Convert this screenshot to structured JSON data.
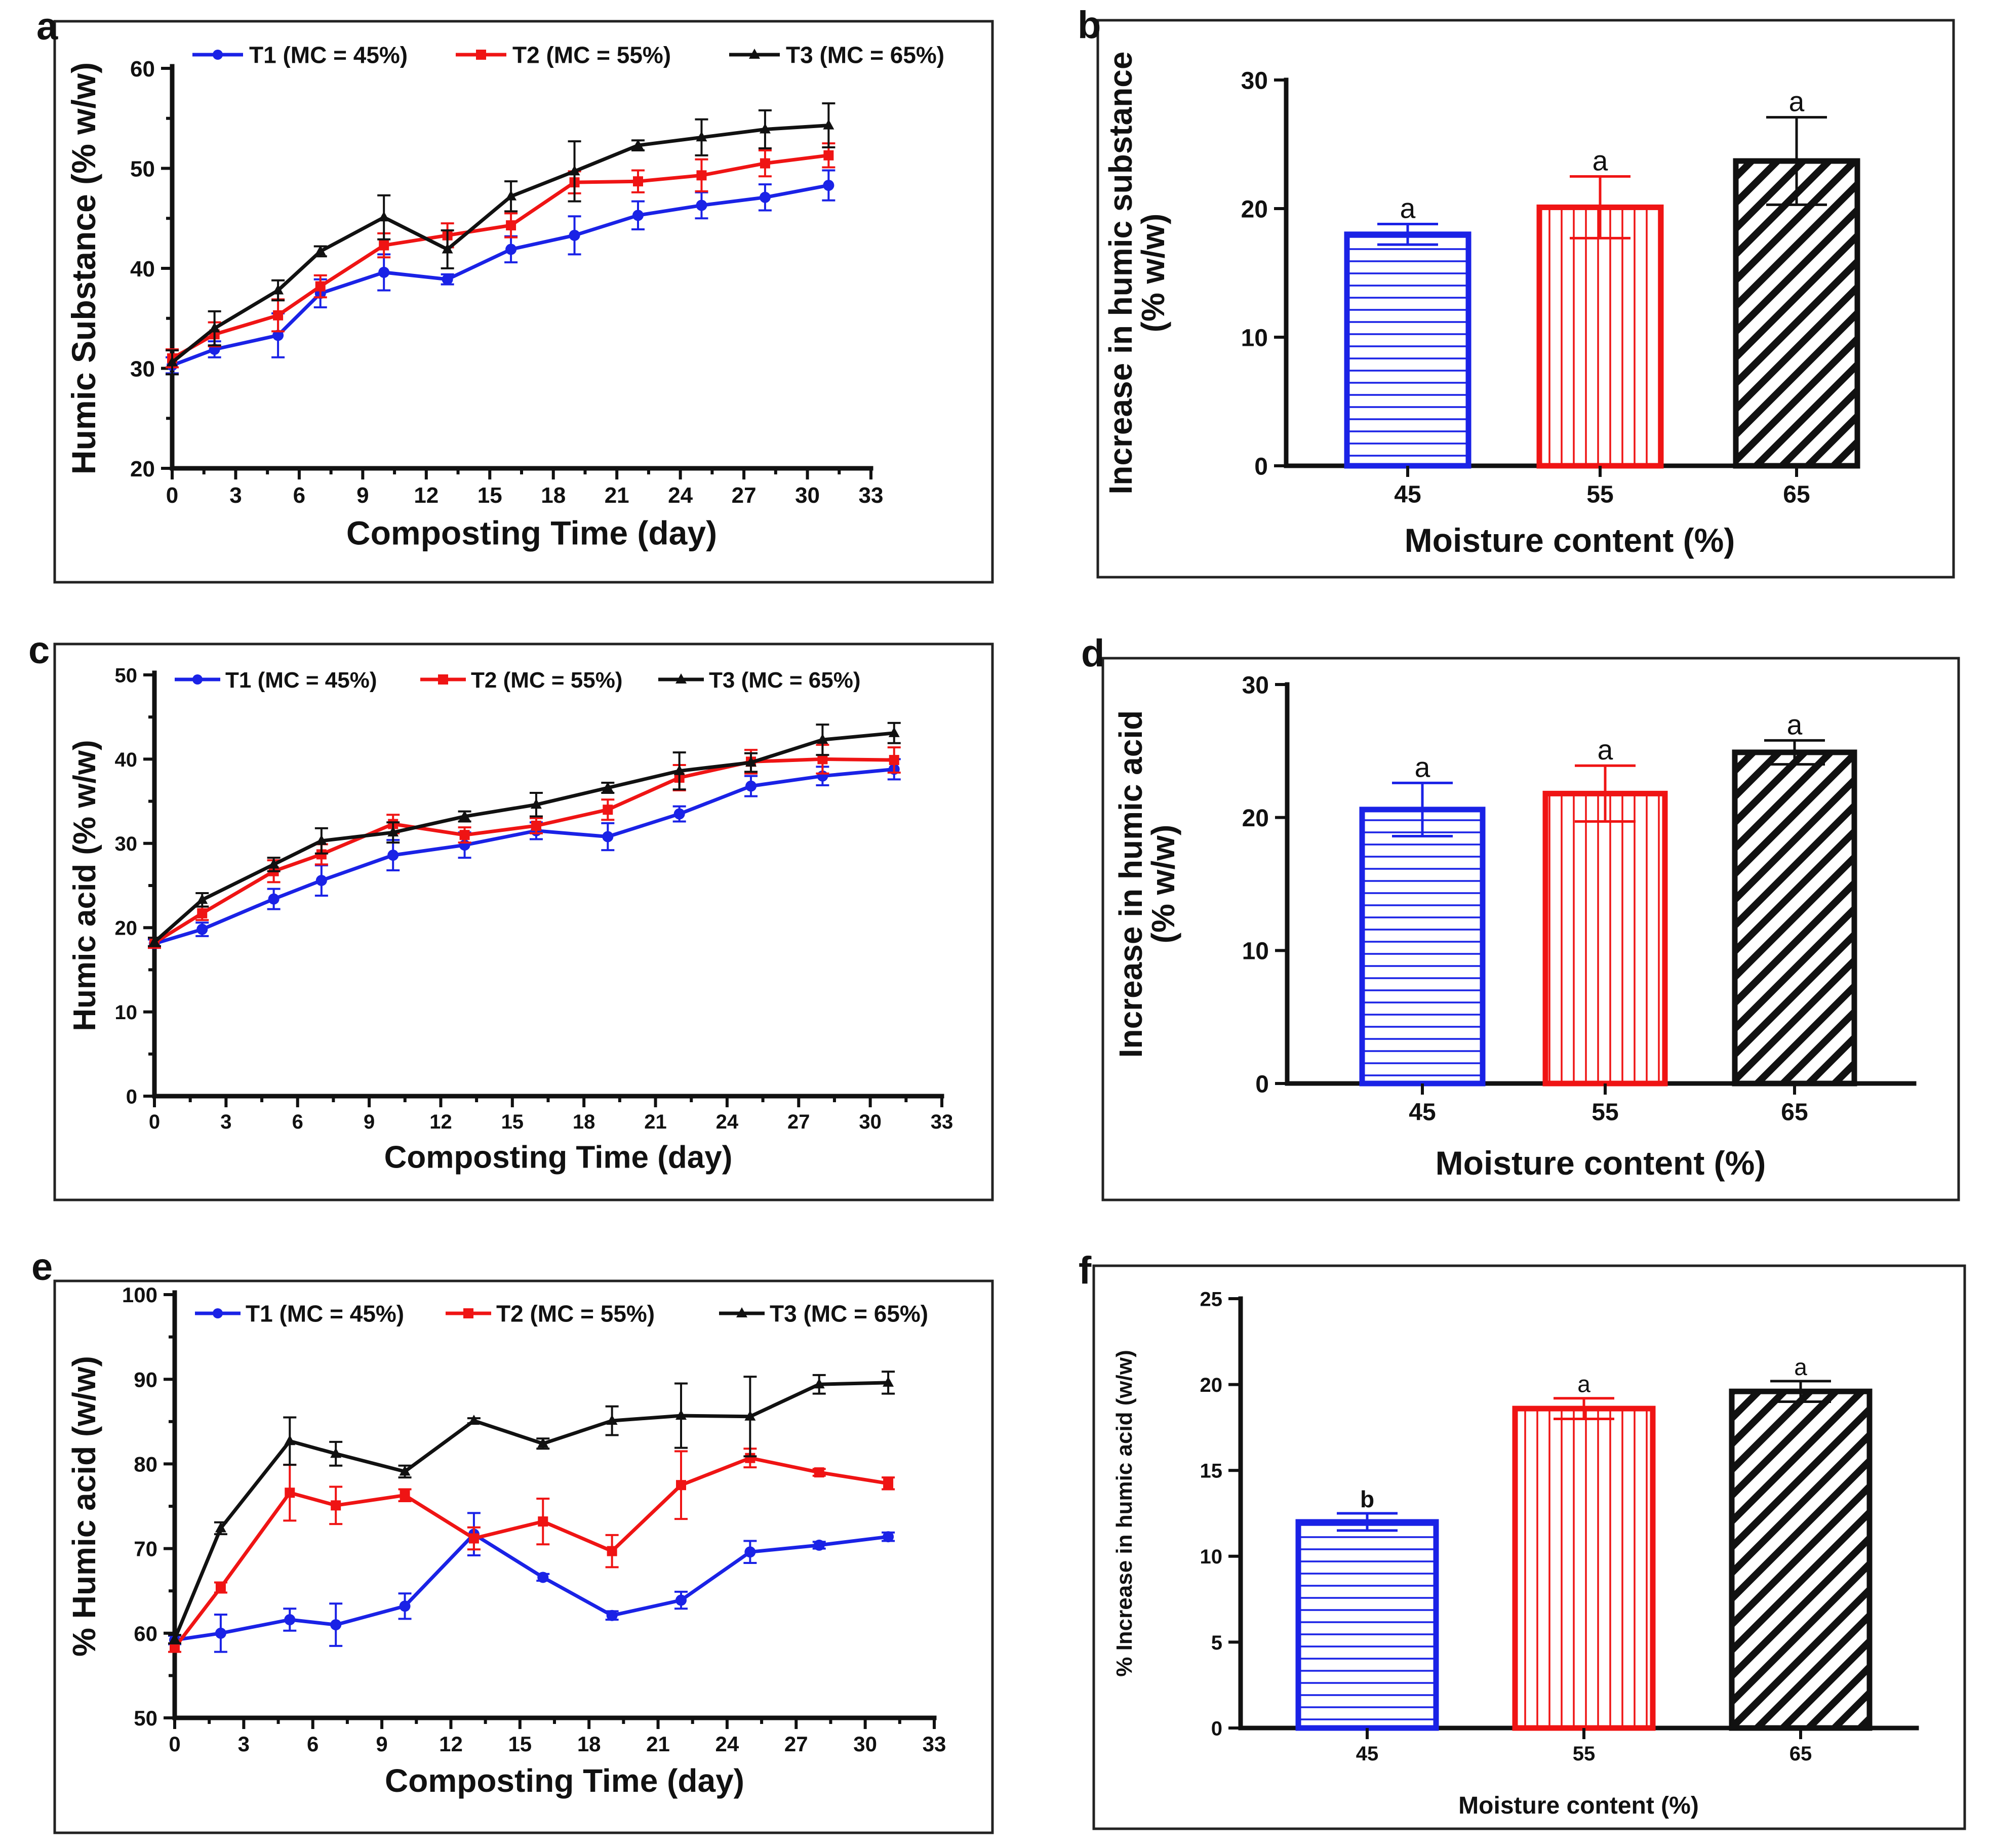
{
  "colors": {
    "T1": "#1a22e6",
    "T2": "#ef1414",
    "T3": "#111111"
  },
  "chart_data": [
    {
      "panel": "a",
      "type": "line",
      "xlabel": "Composting Time (day)",
      "ylabel": "Humic Substance (% w/w)",
      "xlim": [
        0,
        33
      ],
      "ylim": [
        20,
        60
      ],
      "xticks": [
        "0",
        "3",
        "6",
        "9",
        "12",
        "15",
        "18",
        "21",
        "24",
        "27",
        "30",
        "33"
      ],
      "yticks": [
        "20",
        "30",
        "40",
        "50",
        "60"
      ],
      "legend": "top",
      "x": [
        0,
        2,
        5,
        7,
        10,
        13,
        16,
        19,
        22,
        25,
        28,
        31
      ],
      "series": [
        {
          "name": "T1 (MC = 45%)",
          "color_key": "T1",
          "marker": "circle",
          "values": [
            30.3,
            31.9,
            33.3,
            37.5,
            39.6,
            38.9,
            41.9,
            43.3,
            45.3,
            46.3,
            47.1,
            48.3
          ],
          "errors": [
            0.8,
            0.8,
            2.2,
            1.4,
            1.8,
            0.5,
            1.3,
            1.9,
            1.4,
            1.3,
            1.3,
            1.5
          ]
        },
        {
          "name": "T2 (MC = 55%)",
          "color_key": "T2",
          "marker": "square",
          "values": [
            31.0,
            33.4,
            35.3,
            38.2,
            42.3,
            43.3,
            44.3,
            48.6,
            48.7,
            49.3,
            50.5,
            51.3
          ],
          "errors": [
            0.9,
            1.2,
            1.6,
            1.1,
            1.2,
            1.2,
            1.2,
            1.1,
            1.1,
            1.6,
            1.3,
            1.2
          ]
        },
        {
          "name": "T3 (MC = 65%)",
          "color_key": "T3",
          "marker": "triangle",
          "values": [
            30.6,
            34.0,
            37.8,
            41.7,
            45.1,
            41.9,
            47.2,
            49.7,
            52.3,
            53.1,
            53.9,
            54.3
          ],
          "errors": [
            1.2,
            1.7,
            1.0,
            0.5,
            2.2,
            1.9,
            1.5,
            3.0,
            0.5,
            1.8,
            1.9,
            2.2
          ]
        }
      ]
    },
    {
      "panel": "b",
      "type": "bar",
      "xlabel": "Moisture content (%)",
      "ylabel_lines": [
        "Increase in humic substance",
        "(% w/w)"
      ],
      "ylim": [
        0,
        30
      ],
      "yticks": [
        "0",
        "10",
        "20",
        "30"
      ],
      "categories": [
        "45",
        "55",
        "65"
      ],
      "values": [
        18.0,
        20.1,
        23.7
      ],
      "errors": [
        0.8,
        2.4,
        3.4
      ],
      "significance": [
        "a",
        "a",
        "a"
      ]
    },
    {
      "panel": "c",
      "type": "line",
      "xlabel": "Composting Time (day)",
      "ylabel": "Humic acid (% w/w)",
      "xlim": [
        0,
        33
      ],
      "ylim": [
        0,
        50
      ],
      "xticks": [
        "0",
        "3",
        "6",
        "9",
        "12",
        "15",
        "18",
        "21",
        "24",
        "27",
        "30",
        "33"
      ],
      "yticks": [
        "0",
        "10",
        "20",
        "30",
        "40",
        "50"
      ],
      "legend": "top",
      "x": [
        0,
        2,
        5,
        7,
        10,
        13,
        16,
        19,
        22,
        25,
        28,
        31
      ],
      "series": [
        {
          "name": "T1 (MC = 45%)",
          "color_key": "T1",
          "marker": "circle",
          "values": [
            18.1,
            19.8,
            23.4,
            25.6,
            28.6,
            29.8,
            31.5,
            30.8,
            33.5,
            36.8,
            38.0,
            38.8
          ],
          "errors": [
            0.5,
            0.8,
            1.2,
            1.8,
            1.8,
            1.5,
            1.0,
            1.6,
            0.9,
            1.2,
            1.1,
            1.2
          ]
        },
        {
          "name": "T2 (MC = 55%)",
          "color_key": "T2",
          "marker": "square",
          "values": [
            18.2,
            21.7,
            26.7,
            28.7,
            32.3,
            31.0,
            32.1,
            34.0,
            37.8,
            39.7,
            40.0,
            39.9
          ],
          "errors": [
            0.6,
            0.8,
            1.3,
            1.2,
            1.1,
            0.9,
            0.9,
            1.2,
            1.5,
            1.4,
            1.7,
            1.5
          ]
        },
        {
          "name": "T3 (MC = 65%)",
          "color_key": "T3",
          "marker": "triangle",
          "values": [
            18.3,
            23.3,
            27.5,
            30.3,
            31.3,
            33.2,
            34.6,
            36.6,
            38.6,
            39.6,
            42.3,
            43.1
          ],
          "errors": [
            0.5,
            0.8,
            0.8,
            1.5,
            1.2,
            0.6,
            1.4,
            0.6,
            2.2,
            1.1,
            1.8,
            1.2
          ]
        }
      ]
    },
    {
      "panel": "d",
      "type": "bar",
      "xlabel": "Moisture content (%)",
      "ylabel_lines": [
        "Increase in humic acid",
        "(% w/w)"
      ],
      "ylim": [
        0,
        30
      ],
      "yticks": [
        "0",
        "10",
        "20",
        "30"
      ],
      "categories": [
        "45",
        "55",
        "65"
      ],
      "values": [
        20.6,
        21.8,
        24.9
      ],
      "errors": [
        2.0,
        2.1,
        0.9
      ],
      "significance": [
        "a",
        "a",
        "a"
      ]
    },
    {
      "panel": "e",
      "type": "line",
      "xlabel": "Composting Time (day)",
      "ylabel": "% Humic acid (w/w)",
      "xlim": [
        0,
        33
      ],
      "ylim": [
        50,
        100
      ],
      "xticks": [
        "0",
        "3",
        "6",
        "9",
        "12",
        "15",
        "18",
        "21",
        "24",
        "27",
        "30",
        "33"
      ],
      "yticks": [
        "50",
        "60",
        "70",
        "80",
        "90",
        "100"
      ],
      "legend": "top",
      "x": [
        0,
        2,
        5,
        7,
        10,
        13,
        16,
        19,
        22,
        25,
        28,
        31
      ],
      "series": [
        {
          "name": "T1 (MC = 45%)",
          "color_key": "T1",
          "marker": "circle",
          "values": [
            59.2,
            60.0,
            61.6,
            61.0,
            63.2,
            71.7,
            66.6,
            62.1,
            63.9,
            69.6,
            70.4,
            71.4
          ],
          "errors": [
            0.5,
            2.2,
            1.3,
            2.5,
            1.5,
            2.5,
            0.4,
            0.5,
            1.0,
            1.3,
            0.4,
            0.5
          ]
        },
        {
          "name": "T2 (MC = 55%)",
          "color_key": "T2",
          "marker": "square",
          "values": [
            58.3,
            65.4,
            76.6,
            75.1,
            76.3,
            71.2,
            73.2,
            69.7,
            77.5,
            80.7,
            79.0,
            77.7
          ],
          "errors": [
            0.5,
            0.6,
            3.3,
            2.2,
            0.7,
            1.3,
            2.7,
            1.9,
            4.0,
            1.1,
            0.4,
            0.7
          ]
        },
        {
          "name": "T3 (MC = 65%)",
          "color_key": "T3",
          "marker": "triangle",
          "values": [
            59.3,
            72.4,
            82.7,
            81.2,
            79.1,
            85.1,
            82.4,
            85.1,
            85.7,
            85.6,
            89.4,
            89.6
          ],
          "errors": [
            0.5,
            0.7,
            2.8,
            1.4,
            0.7,
            0.3,
            0.6,
            1.7,
            3.8,
            4.7,
            1.1,
            1.3
          ]
        }
      ]
    },
    {
      "panel": "f",
      "type": "bar",
      "xlabel": "Moisture content (%)",
      "ylabel_lines": [
        "% Increase in humic acid (w/w)"
      ],
      "ylim": [
        0,
        25
      ],
      "yticks": [
        "0",
        "5",
        "10",
        "15",
        "20",
        "25"
      ],
      "categories": [
        "45",
        "55",
        "65"
      ],
      "values": [
        12.0,
        18.6,
        19.6
      ],
      "errors": [
        0.5,
        0.6,
        0.6
      ],
      "significance": [
        "b",
        "a",
        "a"
      ]
    }
  ]
}
